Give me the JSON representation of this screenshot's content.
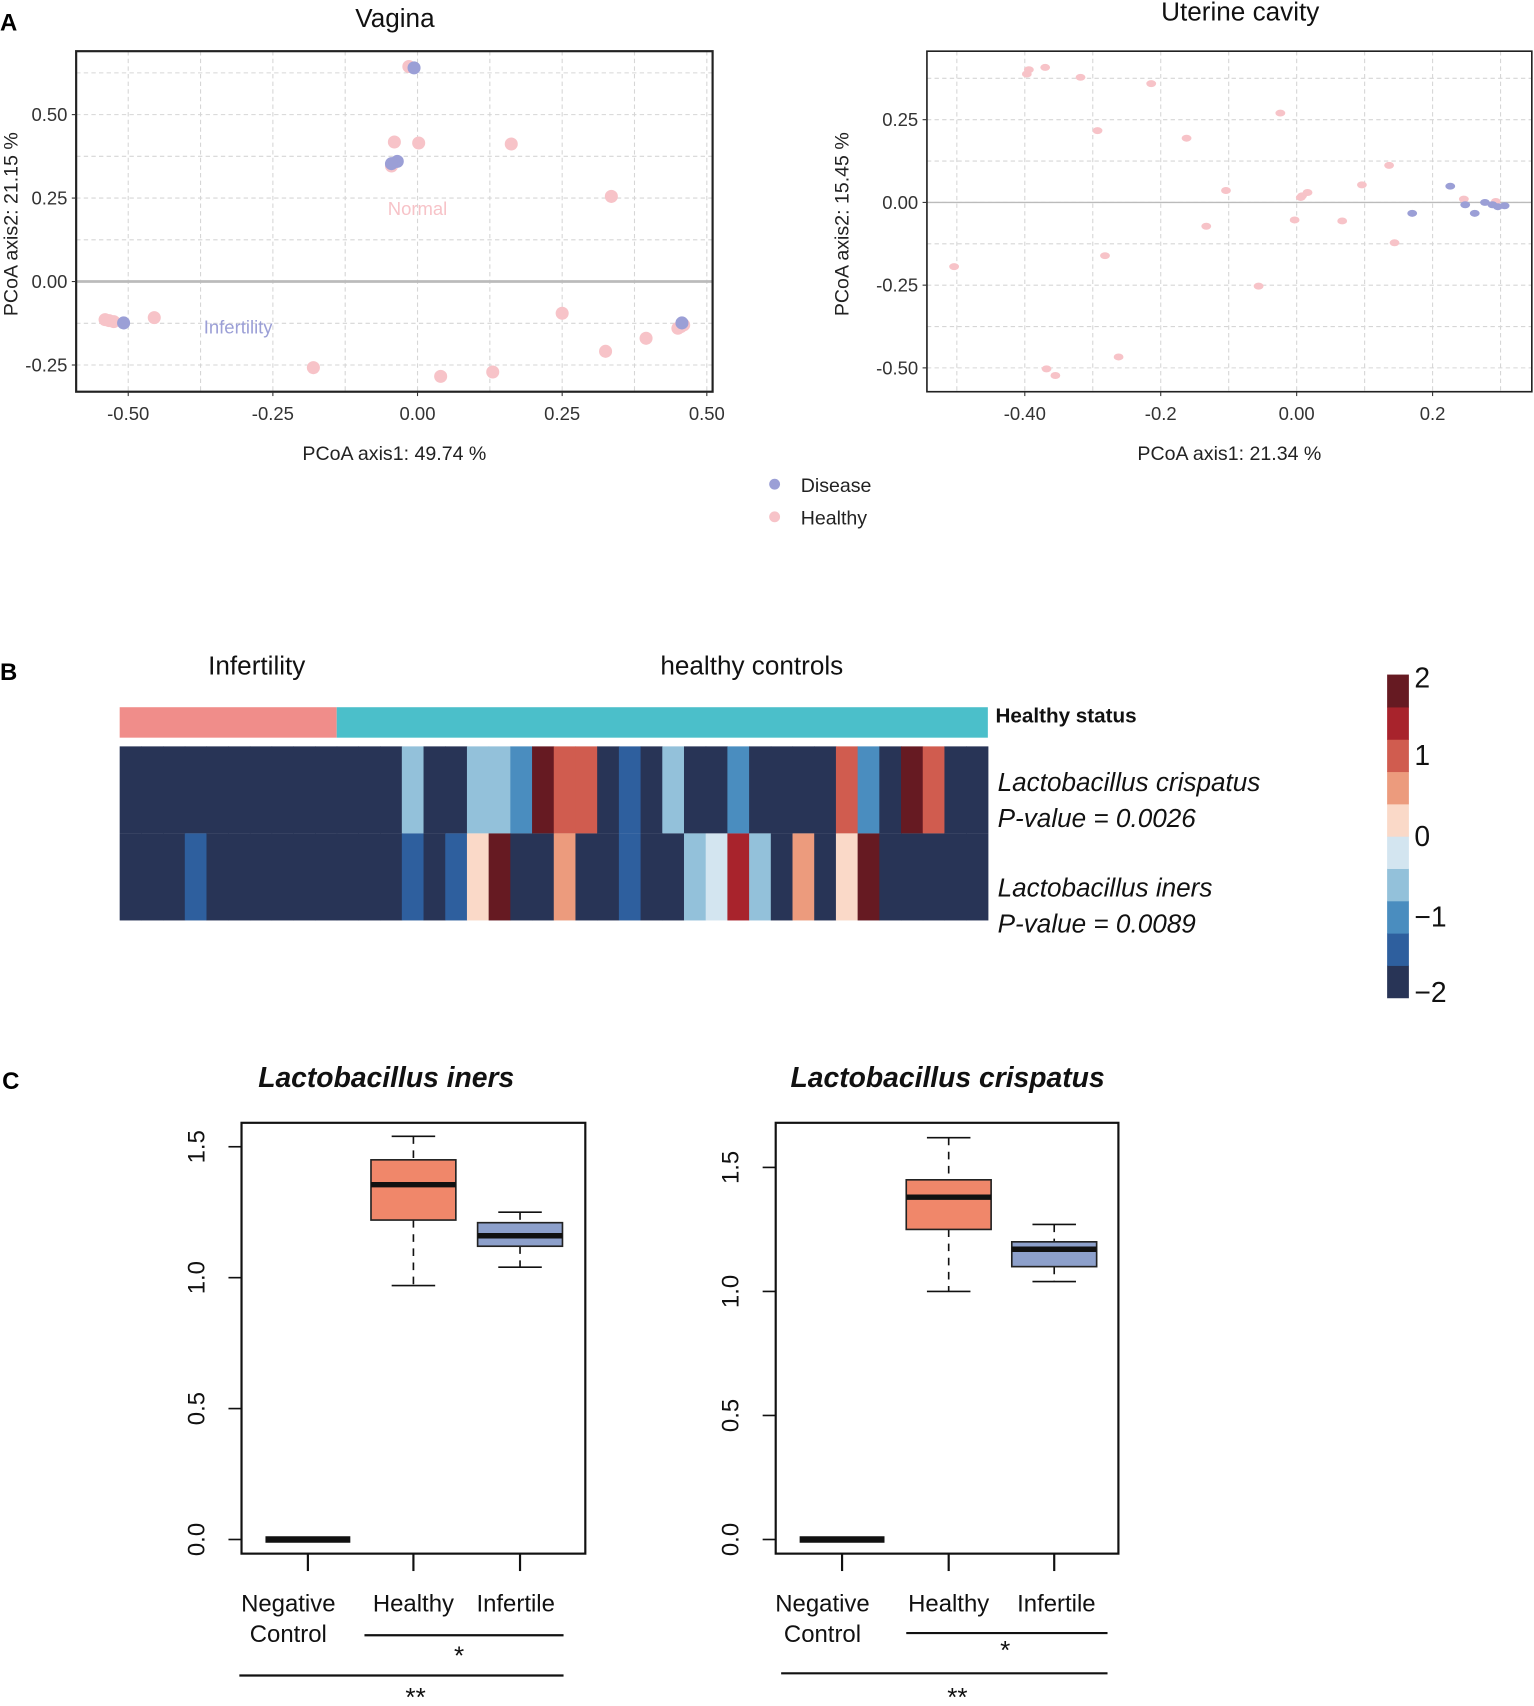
{
  "panels": {
    "a": "A",
    "b": "B",
    "c": "C"
  },
  "legend": {
    "items": [
      {
        "label": "Disease",
        "color": "#9b9fd6"
      },
      {
        "label": "Healthy",
        "color": "#f7c3c8"
      }
    ]
  },
  "chart_data": [
    {
      "type": "scatter",
      "title": "Vagina",
      "xlabel": "PCoA axis1:  49.74 %",
      "ylabel": "PCoA axis2:  21.15 %",
      "xlim": [
        -0.59,
        0.51
      ],
      "ylim": [
        -0.33,
        0.69
      ],
      "xticks": [
        "-0.50",
        "-0.25",
        "0.00",
        "0.25",
        "0.50"
      ],
      "xtick_values": [
        -0.5,
        -0.25,
        0,
        0.25,
        0.5
      ],
      "yticks": [
        "0.50",
        "0.25",
        "0.00",
        "-0.25"
      ],
      "ytick_values": [
        0.5,
        0.25,
        0,
        -0.25
      ],
      "grid": true,
      "annotations": [
        {
          "text": "Normal",
          "x": 0.0,
          "y": 0.2,
          "group": "Healthy"
        },
        {
          "text": "Infertility",
          "x": -0.31,
          "y": -0.155,
          "group": "Disease"
        }
      ],
      "series": [
        {
          "name": "Disease",
          "points": [
            [
              -0.006,
              0.64
            ],
            [
              -0.035,
              0.36
            ],
            [
              -0.045,
              0.353
            ],
            [
              -0.508,
              -0.124
            ],
            [
              0.457,
              -0.124
            ]
          ]
        },
        {
          "name": "Healthy",
          "points": [
            [
              -0.015,
              0.644
            ],
            [
              -0.04,
              0.418
            ],
            [
              0.002,
              0.415
            ],
            [
              0.162,
              0.412
            ],
            [
              -0.045,
              0.346
            ],
            [
              0.335,
              0.255
            ],
            [
              -0.54,
              -0.114
            ],
            [
              -0.533,
              -0.117
            ],
            [
              -0.525,
              -0.12
            ],
            [
              -0.455,
              -0.108
            ],
            [
              -0.18,
              -0.258
            ],
            [
              0.04,
              -0.284
            ],
            [
              0.13,
              -0.271
            ],
            [
              0.25,
              -0.095
            ],
            [
              0.325,
              -0.209
            ],
            [
              0.395,
              -0.17
            ],
            [
              0.45,
              -0.14
            ],
            [
              0.455,
              -0.135
            ],
            [
              0.46,
              -0.13
            ]
          ]
        }
      ]
    },
    {
      "type": "scatter",
      "title": "Uterine cavity",
      "xlabel": "PCoA axis1:  21.34 %",
      "ylabel": "PCoA axis2:  15.45 %",
      "xlim": [
        -0.544,
        0.346
      ],
      "ylim": [
        -0.572,
        0.457
      ],
      "xticks": [
        "-0.40",
        "-0.2",
        "0.00",
        "0.2"
      ],
      "xtick_values": [
        -0.4,
        -0.2,
        0,
        0.2
      ],
      "yticks": [
        "0.25",
        "0.00",
        "-0.25",
        "-0.50"
      ],
      "ytick_values": [
        0.25,
        0,
        -0.25,
        -0.5
      ],
      "grid": true,
      "series": [
        {
          "name": "Disease",
          "points": [
            [
              0.226,
              0.049
            ],
            [
              0.248,
              -0.007
            ],
            [
              0.17,
              -0.033
            ],
            [
              0.262,
              -0.033
            ],
            [
              0.277,
              0.0
            ],
            [
              0.288,
              -0.007
            ],
            [
              0.296,
              -0.013
            ],
            [
              0.306,
              -0.01
            ]
          ]
        },
        {
          "name": "Healthy",
          "points": [
            [
              -0.397,
              0.388
            ],
            [
              -0.394,
              0.401
            ],
            [
              -0.37,
              0.408
            ],
            [
              -0.318,
              0.378
            ],
            [
              -0.214,
              0.359
            ],
            [
              -0.024,
              0.27
            ],
            [
              -0.293,
              0.217
            ],
            [
              -0.162,
              0.194
            ],
            [
              0.136,
              0.112
            ],
            [
              0.096,
              0.053
            ],
            [
              -0.104,
              0.036
            ],
            [
              0.008,
              0.02
            ],
            [
              0.016,
              0.03
            ],
            [
              0.006,
              0.015
            ],
            [
              0.246,
              0.01
            ],
            [
              0.293,
              0.003
            ],
            [
              -0.133,
              -0.072
            ],
            [
              -0.003,
              -0.053
            ],
            [
              0.067,
              -0.056
            ],
            [
              0.144,
              -0.122
            ],
            [
              -0.282,
              -0.161
            ],
            [
              -0.504,
              -0.194
            ],
            [
              -0.056,
              -0.253
            ],
            [
              -0.262,
              -0.467
            ],
            [
              -0.368,
              -0.503
            ],
            [
              -0.355,
              -0.523
            ]
          ]
        }
      ]
    },
    {
      "type": "heatmap",
      "group_labels": [
        "Infertility",
        "healthy controls"
      ],
      "annotation_label": "Healthy status",
      "groups": {
        "infertility_count": 10,
        "healthy_count": 30,
        "colors": [
          "#f08d8a",
          "#4bbfca"
        ]
      },
      "rows": [
        {
          "name": "Lactobacillus crispatus",
          "pvalue": "P-value = 0.0026",
          "values": [
            -1.8,
            -1.8,
            -1.8,
            -1.8,
            -1.8,
            -1.8,
            -1.8,
            -1.8,
            -1.8,
            -1.8,
            -1.8,
            -1.8,
            -1.8,
            -0.6,
            -1.8,
            -1.8,
            -0.6,
            -0.6,
            -1.0,
            1.8,
            1.0,
            1.0,
            -1.8,
            -1.4,
            -1.8,
            -0.6,
            -1.8,
            -1.8,
            -1.0,
            -1.8,
            -1.8,
            -1.8,
            -1.8,
            1.0,
            -1.0,
            -1.8,
            1.8,
            1.0,
            -1.8,
            -1.8
          ]
        },
        {
          "name": "Lactobacillus iners",
          "pvalue": "P-value = 0.0089",
          "values": [
            -1.8,
            -1.8,
            -1.8,
            -1.4,
            -1.8,
            -1.8,
            -1.8,
            -1.8,
            -1.8,
            -1.8,
            -1.8,
            -1.8,
            -1.8,
            -1.4,
            -1.8,
            -1.4,
            0.2,
            1.8,
            -1.8,
            -1.8,
            0.6,
            -1.8,
            -1.8,
            -1.4,
            -1.8,
            -1.8,
            -0.6,
            -0.2,
            1.4,
            -0.6,
            -1.8,
            0.6,
            -1.8,
            0.2,
            1.8,
            -1.8,
            -1.8,
            -1.8,
            -1.8,
            -1.8
          ]
        }
      ],
      "colorbar": {
        "range": [
          -2,
          2
        ],
        "ticks": [
          "2",
          "1",
          "0",
          "−1",
          "−2"
        ],
        "tick_values": [
          2,
          1,
          0,
          -1,
          -2
        ],
        "colors": [
          "#283456",
          "#2e5f9e",
          "#4a8dbf",
          "#93c1da",
          "#d3e5f0",
          "#fad9c8",
          "#ec9b7d",
          "#d05c4f",
          "#a8232c",
          "#661a22"
        ]
      }
    },
    {
      "type": "box",
      "title": "Lactobacillus iners",
      "ylim": [
        0,
        1.6
      ],
      "yticks": [
        "0.0",
        "0.5",
        "1.0",
        "1.5"
      ],
      "ytick_values": [
        0,
        0.5,
        1.0,
        1.5
      ],
      "categories": [
        "Negative Control",
        "Healthy",
        "Infertile"
      ],
      "category_lines": [
        [
          "Negative",
          "Control"
        ],
        [
          "Healthy"
        ],
        [
          "Infertile"
        ]
      ],
      "boxes": [
        {
          "min": 0,
          "q1": 0,
          "median": 0,
          "q3": 0,
          "max": 0,
          "color": "#111111"
        },
        {
          "min": 0.97,
          "q1": 1.22,
          "median": 1.355,
          "q3": 1.45,
          "max": 1.54,
          "color": "#f0876a"
        },
        {
          "min": 1.04,
          "q1": 1.12,
          "median": 1.16,
          "q3": 1.21,
          "max": 1.25,
          "color": "#8da0cb"
        }
      ],
      "significance": [
        {
          "from": "Healthy",
          "to": "Infertile",
          "label": "*"
        },
        {
          "from": "Negative Control",
          "to": "Infertile",
          "label": "**"
        }
      ]
    },
    {
      "type": "box",
      "title": "Lactobacillus crispatus",
      "ylim": [
        0,
        1.65
      ],
      "yticks": [
        "0.0",
        "0.5",
        "1.0",
        "1.5"
      ],
      "ytick_values": [
        0,
        0.5,
        1.0,
        1.5
      ],
      "categories": [
        "Negative Control",
        "Healthy",
        "Infertile"
      ],
      "category_lines": [
        [
          "Negative",
          "Control"
        ],
        [
          "Healthy"
        ],
        [
          "Infertile"
        ]
      ],
      "boxes": [
        {
          "min": 0,
          "q1": 0,
          "median": 0,
          "q3": 0,
          "max": 0,
          "color": "#111111"
        },
        {
          "min": 1.0,
          "q1": 1.25,
          "median": 1.38,
          "q3": 1.45,
          "max": 1.62,
          "color": "#f0876a"
        },
        {
          "min": 1.04,
          "q1": 1.1,
          "median": 1.17,
          "q3": 1.2,
          "max": 1.27,
          "color": "#8da0cb"
        }
      ],
      "significance": [
        {
          "from": "Healthy",
          "to": "Infertile",
          "label": "*"
        },
        {
          "from": "Negative Control",
          "to": "Infertile",
          "label": "**"
        }
      ]
    }
  ]
}
